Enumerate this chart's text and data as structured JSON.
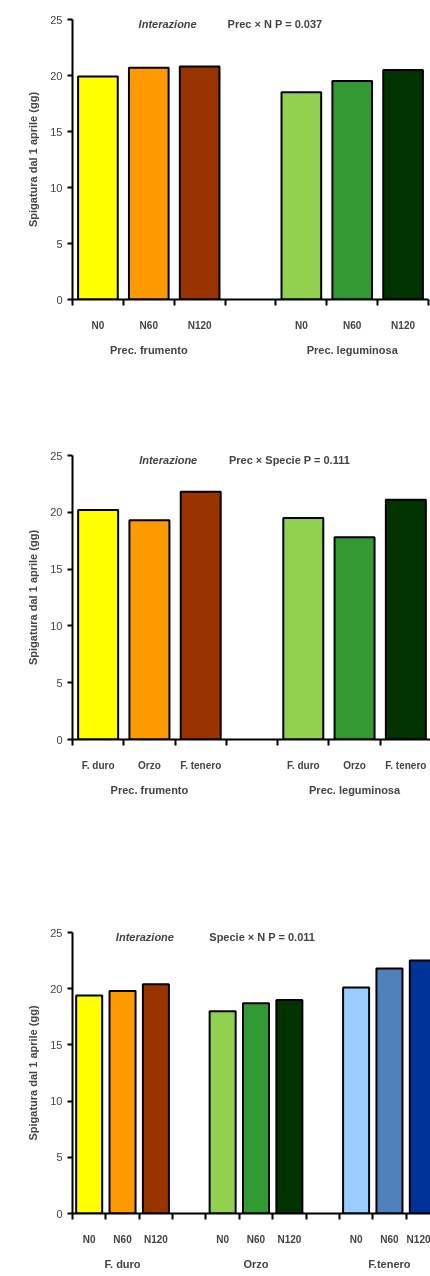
{
  "chart_data": [
    {
      "type": "bar",
      "title": "Interazione",
      "subtitle": "Prec × N     P = 0.037",
      "ylabel": "Spigatura dal 1 aprile (gg)",
      "categories": [
        "N0",
        "N60",
        "N120",
        null,
        "N0",
        "N60",
        "N120"
      ],
      "values": [
        19.9,
        20.7,
        20.8,
        null,
        18.5,
        19.5,
        20.5
      ],
      "colors": [
        "#ffff00",
        "#ff9900",
        "#993300",
        "#ffffff",
        "#92d050",
        "#339933",
        "#003300"
      ],
      "ylim": [
        0,
        25
      ],
      "yticks": [
        0,
        5,
        10,
        15,
        20,
        25
      ],
      "grid": false,
      "annotations": [
        "Prec. frumento",
        "Prec. leguminosa"
      ]
    },
    {
      "type": "bar",
      "title": "Interazione",
      "subtitle": "Prec × Specie     P = 0.111",
      "ylabel": "Spigatura dal 1 aprile (gg)",
      "categories": [
        "F. duro",
        "Orzo",
        "F. tenero",
        null,
        "F. duro",
        "Orzo",
        "F. tenero"
      ],
      "values": [
        20.2,
        19.3,
        21.8,
        null,
        19.5,
        17.8,
        21.1
      ],
      "colors": [
        "#ffff00",
        "#ff9900",
        "#993300",
        "#ffffff",
        "#92d050",
        "#339933",
        "#003300"
      ],
      "ylim": [
        0,
        25
      ],
      "yticks": [
        0,
        5,
        10,
        15,
        20,
        25
      ],
      "grid": false,
      "annotations": [
        "Prec. frumento",
        "Prec. leguminosa"
      ]
    },
    {
      "type": "bar",
      "title": "Interazione",
      "subtitle": "Specie  ×  N     P = 0.011",
      "ylabel": "Spigatura dal 1 aprile (gg)",
      "categories": [
        "N0",
        "N60",
        "N120",
        null,
        "N0",
        "N60",
        "N120",
        null,
        "N0",
        "N60",
        "N120"
      ],
      "values": [
        19.4,
        19.8,
        20.4,
        null,
        18.0,
        18.7,
        19.0,
        null,
        20.1,
        21.8,
        22.5
      ],
      "colors": [
        "#ffff00",
        "#ff9900",
        "#993300",
        "#ffffff",
        "#92d050",
        "#339933",
        "#003300",
        "#ffffff",
        "#99ccff",
        "#4f81bd",
        "#003399"
      ],
      "ylim": [
        0,
        25
      ],
      "yticks": [
        0,
        5,
        10,
        15,
        20,
        25
      ],
      "grid": false,
      "annotations": [
        "F. duro",
        "Orzo",
        "F.tenero"
      ]
    }
  ]
}
